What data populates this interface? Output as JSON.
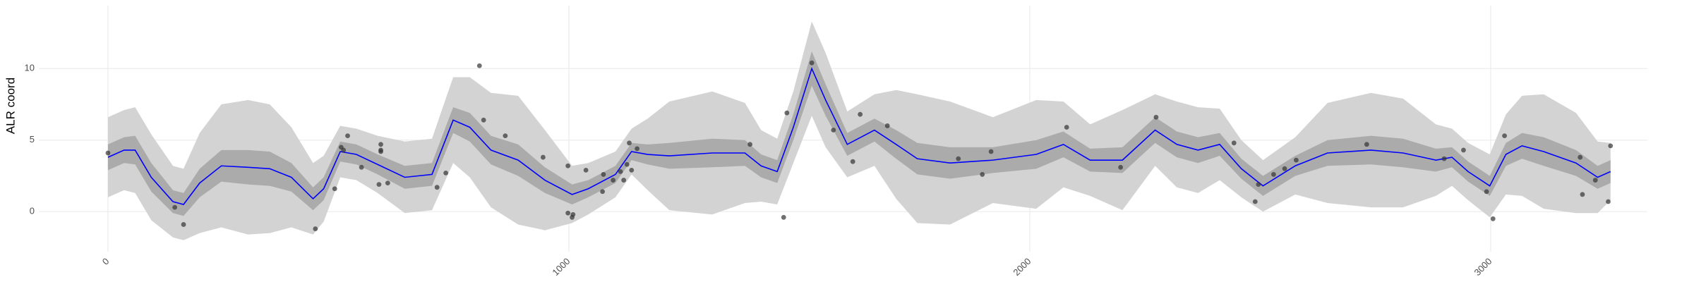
{
  "chart_data": {
    "type": "gp-ribbon",
    "ylabel": "ALR coord",
    "xlim": [
      -150,
      3340
    ],
    "ylim": [
      -2.8,
      14.4
    ],
    "xticks": [
      0,
      1000,
      2000,
      3000
    ],
    "yticks": [
      0,
      5,
      10
    ],
    "grid": true,
    "x": [
      0,
      35,
      59,
      94,
      141,
      164,
      199,
      246,
      304,
      351,
      398,
      445,
      468,
      504,
      539,
      585,
      644,
      703,
      749,
      785,
      831,
      890,
      948,
      1007,
      1042,
      1101,
      1136,
      1171,
      1218,
      1311,
      1382,
      1417,
      1452,
      1487,
      1527,
      1557,
      1604,
      1663,
      1710,
      1756,
      1827,
      1920,
      2014,
      2073,
      2131,
      2201,
      2272,
      2319,
      2365,
      2412,
      2459,
      2506,
      2576,
      2646,
      2740,
      2810,
      2881,
      2916,
      2951,
      2998,
      3033,
      3068,
      3115,
      3185,
      3232,
      3260
    ],
    "ribbons": [
      {
        "color": "#d3d3d3",
        "lower": [
          1.0,
          1.5,
          1.3,
          -0.6,
          -1.8,
          -2.0,
          -1.5,
          -1.1,
          -1.6,
          -1.5,
          -1.1,
          -1.6,
          -0.7,
          2.4,
          2.2,
          1.3,
          -0.1,
          0.1,
          3.4,
          2.4,
          0.3,
          -0.9,
          -1.3,
          -0.8,
          -0.2,
          1.0,
          2.6,
          1.5,
          0.1,
          -0.2,
          0.6,
          0.7,
          0.5,
          3.4,
          6.7,
          4.5,
          2.4,
          3.2,
          0.9,
          -0.8,
          -0.9,
          0.6,
          0.2,
          1.7,
          1.1,
          0.1,
          3.2,
          1.7,
          1.3,
          2.2,
          1.0,
          0.0,
          1.2,
          0.6,
          0.3,
          0.3,
          1.1,
          1.8,
          0.8,
          -0.4,
          1.2,
          1.1,
          0.2,
          -0.1,
          -0.1,
          0.8
        ],
        "upper": [
          6.6,
          7.1,
          7.3,
          5.4,
          3.2,
          3.0,
          5.5,
          7.5,
          7.8,
          7.5,
          5.9,
          3.4,
          3.9,
          6.0,
          5.8,
          5.3,
          4.9,
          5.1,
          9.4,
          9.4,
          8.3,
          8.1,
          5.7,
          3.2,
          3.4,
          4.2,
          5.8,
          6.5,
          7.7,
          8.4,
          7.6,
          5.7,
          5.1,
          8.4,
          13.3,
          11.1,
          7.0,
          8.2,
          8.5,
          8.2,
          7.7,
          6.6,
          7.8,
          7.7,
          6.1,
          7.1,
          8.2,
          7.7,
          7.3,
          7.2,
          5.0,
          3.6,
          5.2,
          7.6,
          8.3,
          7.9,
          6.1,
          5.8,
          4.8,
          4.0,
          6.8,
          8.1,
          8.2,
          6.9,
          4.9,
          4.8
        ]
      },
      {
        "color": "#ababab",
        "lower": [
          2.9,
          3.4,
          3.3,
          1.4,
          -0.1,
          -0.3,
          1.0,
          2.1,
          1.9,
          1.8,
          1.4,
          0.1,
          0.8,
          3.5,
          3.3,
          2.6,
          1.6,
          1.8,
          5.5,
          4.9,
          3.3,
          2.5,
          1.3,
          0.5,
          1.0,
          2.0,
          3.6,
          3.3,
          3.0,
          3.1,
          3.2,
          2.4,
          2.0,
          5.0,
          8.8,
          6.7,
          3.9,
          4.9,
          3.7,
          2.6,
          2.3,
          2.7,
          3.0,
          3.8,
          2.8,
          2.7,
          4.8,
          3.8,
          3.4,
          3.9,
          2.3,
          1.1,
          2.5,
          3.2,
          3.3,
          3.1,
          2.8,
          3.1,
          2.1,
          1.1,
          3.2,
          3.7,
          3.2,
          2.5,
          1.6,
          2.0
        ],
        "upper": [
          4.7,
          5.2,
          5.3,
          3.4,
          1.5,
          1.3,
          3.0,
          4.3,
          4.3,
          4.2,
          3.4,
          1.7,
          2.4,
          4.9,
          4.7,
          4.0,
          3.2,
          3.4,
          7.3,
          6.9,
          5.3,
          4.7,
          3.1,
          1.9,
          2.2,
          3.2,
          4.8,
          4.7,
          4.8,
          5.1,
          5.0,
          4.0,
          3.6,
          6.8,
          11.2,
          8.9,
          5.5,
          6.5,
          5.7,
          4.8,
          4.5,
          4.5,
          5.0,
          5.6,
          4.4,
          4.5,
          6.6,
          5.6,
          5.2,
          5.5,
          3.7,
          2.5,
          3.9,
          5.0,
          5.3,
          5.1,
          4.4,
          4.5,
          3.5,
          2.5,
          4.8,
          5.5,
          5.2,
          4.3,
          3.2,
          3.6
        ]
      }
    ],
    "line": {
      "color": "#0000ff",
      "values": [
        3.8,
        4.3,
        4.3,
        2.4,
        0.7,
        0.5,
        2.0,
        3.2,
        3.1,
        3.0,
        2.4,
        0.9,
        1.6,
        4.2,
        4.0,
        3.3,
        2.4,
        2.6,
        6.4,
        5.9,
        4.3,
        3.6,
        2.2,
        1.2,
        1.6,
        2.6,
        4.2,
        4.0,
        3.9,
        4.1,
        4.1,
        3.2,
        2.8,
        5.9,
        10.0,
        7.8,
        4.7,
        5.7,
        4.7,
        3.7,
        3.4,
        3.6,
        4.0,
        4.7,
        3.6,
        3.6,
        5.7,
        4.7,
        4.3,
        4.7,
        3.0,
        1.8,
        3.2,
        4.1,
        4.3,
        4.1,
        3.6,
        3.8,
        2.8,
        1.8,
        4.0,
        4.6,
        4.2,
        3.4,
        2.4,
        2.8
      ]
    },
    "points": {
      "color": "#333333",
      "x": [
        0,
        145,
        164,
        450,
        492,
        506,
        511,
        520,
        550,
        588,
        592,
        592,
        592,
        607,
        714,
        733,
        806,
        815,
        862,
        944,
        998,
        998,
        1007,
        1009,
        1037,
        1073,
        1075,
        1096,
        1112,
        1119,
        1126,
        1131,
        1136,
        1148,
        1393,
        1466,
        1473,
        1527,
        1574,
        1616,
        1632,
        1691,
        1845,
        1897,
        1916,
        2080,
        2197,
        2274,
        2443,
        2489,
        2496,
        2529,
        2553,
        2578,
        2731,
        2899,
        2941,
        2991,
        3005,
        3030,
        3194,
        3199,
        3227,
        3255,
        3260
      ],
      "y": [
        4.1,
        0.3,
        -0.9,
        -1.2,
        1.6,
        4.5,
        4.3,
        5.3,
        3.1,
        1.9,
        4.7,
        4.3,
        4.2,
        2.0,
        1.7,
        2.7,
        10.2,
        6.4,
        5.3,
        3.8,
        3.2,
        -0.1,
        -0.4,
        -0.2,
        2.9,
        1.4,
        2.6,
        2.2,
        2.8,
        2.2,
        3.3,
        4.8,
        2.9,
        4.4,
        4.7,
        -0.4,
        6.9,
        10.4,
        5.7,
        3.5,
        6.8,
        6.0,
        3.7,
        2.6,
        4.2,
        5.9,
        3.1,
        6.6,
        4.8,
        0.7,
        1.9,
        2.6,
        3.0,
        3.6,
        4.7,
        3.7,
        4.3,
        1.4,
        -0.5,
        5.3,
        3.8,
        1.2,
        2.2,
        0.7,
        4.6
      ]
    }
  }
}
